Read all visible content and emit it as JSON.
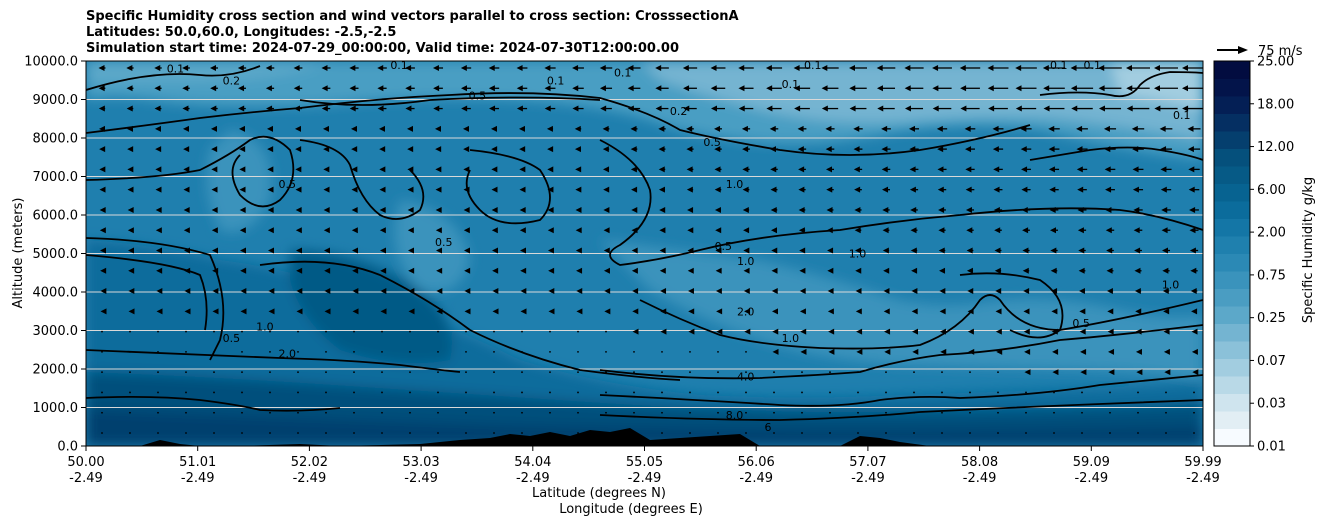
{
  "title_lines": [
    "Specific Humidity cross section and wind vectors parallel to cross section: CrosssectionA",
    "Latitudes: 50.0,60.0, Longitudes: -2.5,-2.5",
    "Simulation start time: 2024-07-29_00:00:00, Valid time: 2024-07-30T12:00:00.00"
  ],
  "chart_data": {
    "type": "heatmap",
    "title": "Specific Humidity cross section and wind vectors parallel to cross section: CrosssectionA",
    "ylabel": "Altitude (meters)",
    "xlabel_lines": [
      "Latitude (degrees N)",
      "Longitude (degrees E)"
    ],
    "ylim": [
      0,
      10000
    ],
    "y_ticks": [
      "0.0",
      "1000.0",
      "2000.0",
      "3000.0",
      "4000.0",
      "5000.0",
      "6000.0",
      "7000.0",
      "8000.0",
      "9000.0",
      "10000.0"
    ],
    "x_ticks": [
      {
        "lat": "50.00",
        "lon": "-2.49"
      },
      {
        "lat": "51.01",
        "lon": "-2.49"
      },
      {
        "lat": "52.02",
        "lon": "-2.49"
      },
      {
        "lat": "53.03",
        "lon": "-2.49"
      },
      {
        "lat": "54.04",
        "lon": "-2.49"
      },
      {
        "lat": "55.05",
        "lon": "-2.49"
      },
      {
        "lat": "56.06",
        "lon": "-2.49"
      },
      {
        "lat": "57.07",
        "lon": "-2.49"
      },
      {
        "lat": "58.08",
        "lon": "-2.49"
      },
      {
        "lat": "59.09",
        "lon": "-2.49"
      },
      {
        "lat": "59.99",
        "lon": "-2.49"
      }
    ],
    "grid": "horizontal",
    "colorbar": {
      "label": "Specific Humidity g/kg",
      "tick_labels": [
        "0.01",
        "0.03",
        "0.07",
        "0.25",
        "0.75",
        "2.00",
        "6.00",
        "12.00",
        "18.00",
        "25.00"
      ],
      "colors": [
        "#f7fbff",
        "#e2eef4",
        "#cfe4ee",
        "#b9d9e7",
        "#a2cde0",
        "#8bc1d9",
        "#74b4d1",
        "#5ca8c9",
        "#4a9dc2",
        "#3a93bc",
        "#2b89b5",
        "#1f80ae",
        "#1476a6",
        "#0b6c9c",
        "#076391",
        "#065a86",
        "#05507c",
        "#053f6e",
        "#052f62",
        "#041f55",
        "#03144a",
        "#020c40"
      ]
    },
    "wind_reference": "75 m/s",
    "contour_labels": [
      {
        "text": "0.1",
        "lat": 50.8,
        "alt": 9800
      },
      {
        "text": "0.2",
        "lat": 51.3,
        "alt": 9500
      },
      {
        "text": "0.1",
        "lat": 52.8,
        "alt": 9900
      },
      {
        "text": "0.1",
        "lat": 54.2,
        "alt": 9500
      },
      {
        "text": "0.1",
        "lat": 54.8,
        "alt": 9700
      },
      {
        "text": "0.5",
        "lat": 53.5,
        "alt": 9100
      },
      {
        "text": "0.1",
        "lat": 56.3,
        "alt": 9400
      },
      {
        "text": "0.1",
        "lat": 56.5,
        "alt": 9900
      },
      {
        "text": "0.1",
        "lat": 58.7,
        "alt": 9900
      },
      {
        "text": "0.1",
        "lat": 59.0,
        "alt": 9900
      },
      {
        "text": "0.1",
        "lat": 59.8,
        "alt": 8600
      },
      {
        "text": "0.2",
        "lat": 55.3,
        "alt": 8700
      },
      {
        "text": "0.5",
        "lat": 55.6,
        "alt": 7900
      },
      {
        "text": "1.0",
        "lat": 55.8,
        "alt": 6800
      },
      {
        "text": "0.5",
        "lat": 51.8,
        "alt": 6800
      },
      {
        "text": "0.5",
        "lat": 53.2,
        "alt": 5300
      },
      {
        "text": "0.5",
        "lat": 55.7,
        "alt": 5200
      },
      {
        "text": "1.0",
        "lat": 56.9,
        "alt": 5000
      },
      {
        "text": "1.0",
        "lat": 55.9,
        "alt": 4800
      },
      {
        "text": "1.0",
        "lat": 59.7,
        "alt": 4200
      },
      {
        "text": "0.5",
        "lat": 51.3,
        "alt": 2800
      },
      {
        "text": "1.0",
        "lat": 51.6,
        "alt": 3100
      },
      {
        "text": "2.0",
        "lat": 51.8,
        "alt": 2400
      },
      {
        "text": "2.0",
        "lat": 55.9,
        "alt": 3500
      },
      {
        "text": "1.0",
        "lat": 56.3,
        "alt": 2800
      },
      {
        "text": "0.5",
        "lat": 58.9,
        "alt": 3200
      },
      {
        "text": "4.0",
        "lat": 55.9,
        "alt": 1800
      },
      {
        "text": "8.0",
        "lat": 55.8,
        "alt": 800
      },
      {
        "text": "6",
        "lat": 56.1,
        "alt": 500
      }
    ]
  }
}
